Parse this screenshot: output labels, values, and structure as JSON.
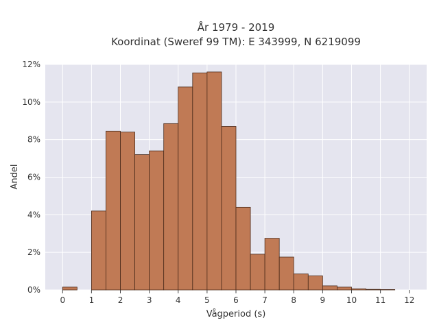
{
  "chart_data": {
    "type": "bar",
    "title_lines": [
      "År 1979 - 2019",
      "Koordinat (Sweref 99 TM): E 343999, N 6219099"
    ],
    "xlabel": "Vågperiod (s)",
    "ylabel": "Andel",
    "xlim": [
      -0.6,
      12.6
    ],
    "ylim": [
      0,
      12
    ],
    "x_ticks": [
      0,
      1,
      2,
      3,
      4,
      5,
      6,
      7,
      8,
      9,
      10,
      11,
      12
    ],
    "x_tick_labels": [
      "0",
      "1",
      "2",
      "3",
      "4",
      "5",
      "6",
      "7",
      "8",
      "9",
      "10",
      "11",
      "12"
    ],
    "y_ticks": [
      0,
      2,
      4,
      6,
      8,
      10,
      12
    ],
    "y_tick_labels": [
      "0%",
      "2%",
      "4%",
      "6%",
      "8%",
      "10%",
      "12%"
    ],
    "bin_width": 0.5,
    "bins": [
      {
        "start": 0.0,
        "value": 0.15
      },
      {
        "start": 1.0,
        "value": 4.2
      },
      {
        "start": 1.5,
        "value": 8.45
      },
      {
        "start": 2.0,
        "value": 8.4
      },
      {
        "start": 2.5,
        "value": 7.2
      },
      {
        "start": 3.0,
        "value": 7.4
      },
      {
        "start": 3.5,
        "value": 8.85
      },
      {
        "start": 4.0,
        "value": 10.8
      },
      {
        "start": 4.5,
        "value": 11.55
      },
      {
        "start": 5.0,
        "value": 11.6
      },
      {
        "start": 5.5,
        "value": 8.7
      },
      {
        "start": 6.0,
        "value": 4.4
      },
      {
        "start": 6.5,
        "value": 1.9
      },
      {
        "start": 7.0,
        "value": 2.75
      },
      {
        "start": 7.5,
        "value": 1.75
      },
      {
        "start": 8.0,
        "value": 0.85
      },
      {
        "start": 8.5,
        "value": 0.75
      },
      {
        "start": 9.0,
        "value": 0.22
      },
      {
        "start": 9.5,
        "value": 0.15
      },
      {
        "start": 10.0,
        "value": 0.06
      },
      {
        "start": 10.5,
        "value": 0.03
      },
      {
        "start": 11.0,
        "value": 0.02
      }
    ],
    "bar_color": "#c07a55",
    "bar_edge_color": "#4a2a1a",
    "plot_background": "#e5e5ef",
    "grid": true
  }
}
